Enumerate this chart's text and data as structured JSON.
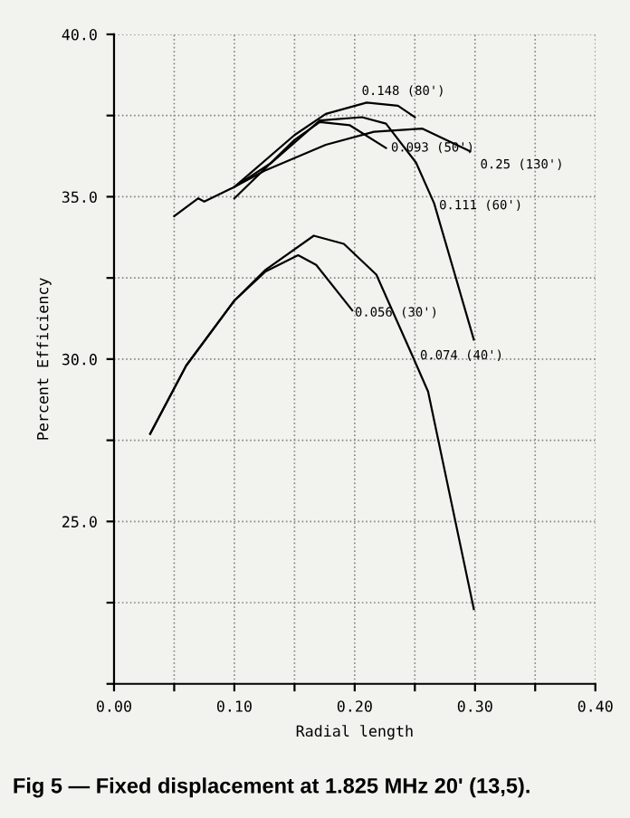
{
  "chart_data": {
    "type": "line",
    "xlabel": "Radial length",
    "ylabel": "Percent Efficiency",
    "xlim": [
      0,
      0.4
    ],
    "ylim": [
      20,
      40
    ],
    "xticks": [
      {
        "value": 0,
        "label": "0.00"
      },
      {
        "value": 0.05,
        "label": null
      },
      {
        "value": 0.1,
        "label": "0.10"
      },
      {
        "value": 0.15,
        "label": null
      },
      {
        "value": 0.2,
        "label": "0.20"
      },
      {
        "value": 0.25,
        "label": null
      },
      {
        "value": 0.3,
        "label": "0.30"
      },
      {
        "value": 0.35,
        "label": null
      },
      {
        "value": 0.4,
        "label": "0.40"
      }
    ],
    "yticks": [
      {
        "value": 20,
        "label": null
      },
      {
        "value": 22.5,
        "label": null
      },
      {
        "value": 25,
        "label": "25.0"
      },
      {
        "value": 27.5,
        "label": null
      },
      {
        "value": 30,
        "label": "30.0"
      },
      {
        "value": 32.5,
        "label": null
      },
      {
        "value": 35,
        "label": "35.0"
      },
      {
        "value": 37.5,
        "label": null
      },
      {
        "value": 40,
        "label": "40.0"
      }
    ],
    "grid": true,
    "marker": "none",
    "line_style": "solid",
    "series": [
      {
        "color": "#000000",
        "x": [
          0.1,
          0.15,
          0.176,
          0.21,
          0.236,
          0.25
        ],
        "values": [
          35.3,
          36.9,
          37.55,
          37.9,
          37.8,
          37.45
        ]
      },
      {
        "color": "#000000",
        "x": [
          0.1,
          0.15,
          0.171,
          0.196,
          0.226
        ],
        "values": [
          34.95,
          36.75,
          37.3,
          37.2,
          36.5
        ]
      },
      {
        "color": "#000000",
        "x": [
          0.05,
          0.07,
          0.075,
          0.1,
          0.125,
          0.176,
          0.216,
          0.256,
          0.296
        ],
        "values": [
          34.4,
          34.95,
          34.85,
          35.3,
          35.8,
          36.6,
          37.0,
          37.1,
          36.4
        ]
      },
      {
        "color": "#000000",
        "x": [
          0.1,
          0.131,
          0.171,
          0.206,
          0.226,
          0.251,
          0.266,
          0.299
        ],
        "values": [
          35.3,
          36.05,
          37.35,
          37.45,
          37.25,
          36.05,
          34.8,
          30.6
        ]
      },
      {
        "color": "#000000",
        "x": [
          0.03,
          0.06,
          0.1,
          0.126,
          0.153,
          0.168,
          0.198
        ],
        "values": [
          27.7,
          29.8,
          31.8,
          32.7,
          33.2,
          32.9,
          31.5
        ]
      },
      {
        "color": "#000000",
        "x": [
          0.03,
          0.06,
          0.1,
          0.126,
          0.166,
          0.191,
          0.218,
          0.248,
          0.261,
          0.299
        ],
        "values": [
          27.7,
          29.8,
          31.8,
          32.75,
          33.8,
          33.55,
          32.6,
          30.1,
          29.0,
          22.3
        ]
      }
    ],
    "annotations": [
      {
        "text": "0.148 (80')",
        "x": 0.21,
        "y": 37.9
      },
      {
        "text": "0.093 (50')",
        "x": 0.226,
        "y": 36.5
      },
      {
        "text": "0.25 (130')",
        "x": 0.296,
        "y": 36.4
      },
      {
        "text": "0.111 (60')",
        "x": 0.266,
        "y": 34.8
      },
      {
        "text": "0.056 (30')",
        "x": 0.198,
        "y": 31.5
      },
      {
        "text": "0.074 (40')",
        "x": 0.248,
        "y": 30.1
      },
      "Fig 5 — Fixed displacement at 1.825 MHz 20' (13,5)."
    ]
  }
}
